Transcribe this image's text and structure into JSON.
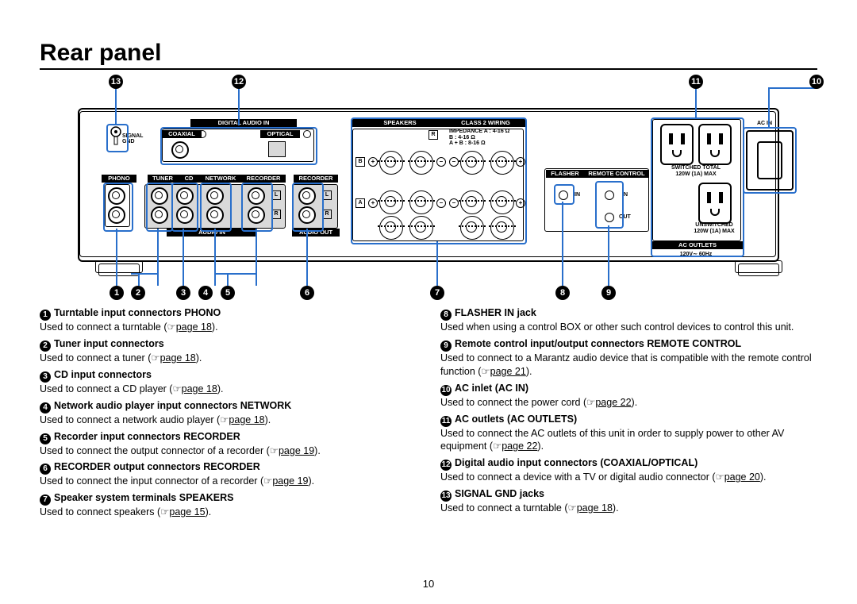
{
  "title": "Rear panel",
  "pagenum": "10",
  "callouts": {
    "c1": "1",
    "c2": "2",
    "c3": "3",
    "c4": "4",
    "c5": "5",
    "c6": "6",
    "c7": "7",
    "c8": "8",
    "c9": "9",
    "c10": "10",
    "c11": "11",
    "c12": "12",
    "c13": "13"
  },
  "panel_labels": {
    "digital_audio_in": "DIGITAL AUDIO IN",
    "coaxial": "COAXIAL",
    "optical": "OPTICAL",
    "signal_gnd": "SIGNAL\nGND",
    "phono": "PHONO",
    "tuner": "TUNER",
    "cd": "CD",
    "network": "NETWORK",
    "recorder": "RECORDER",
    "audio_in": "AUDIO IN",
    "audio_out": "AUDIO OUT",
    "speakers": "SPEAKERS",
    "class2": "CLASS 2 WIRING",
    "imp": "IMPEDANCE  A  :  4-16 Ω\nB  :  4-16 Ω\nA + B  : 8-16 Ω",
    "flasher": "FLASHER",
    "remote": "REMOTE CONTROL",
    "in": "IN",
    "out": "OUT",
    "ac_outlets": "AC OUTLETS",
    "switched": "SWITCHED TOTAL\n120W (1A) MAX",
    "unswitched": "UNSWITCHED\n120W (1A) MAX",
    "v60": "120V∼  60Hz",
    "ac_in": "AC IN",
    "L": "L",
    "R": "R",
    "A": "A",
    "B": "B",
    "plus": "+",
    "minus": "–"
  },
  "left": [
    {
      "n": "1",
      "t": "Turntable input connectors PHONO",
      "d": "Used to connect a turntable (☞",
      "p": "page 18",
      "e": ")."
    },
    {
      "n": "2",
      "t": "Tuner input connectors",
      "d": "Used to connect a tuner (☞",
      "p": "page 18",
      "e": ")."
    },
    {
      "n": "3",
      "t": "CD input connectors",
      "d": "Used to connect a CD player (☞",
      "p": "page 18",
      "e": ")."
    },
    {
      "n": "4",
      "t": "Network audio player input connectors NETWORK",
      "d": "Used to connect a network audio player (☞",
      "p": "page 18",
      "e": ")."
    },
    {
      "n": "5",
      "t": "Recorder input connectors RECORDER",
      "d": "Used to connect the output connector of a recorder (☞",
      "p": "page 19",
      "e": ")."
    },
    {
      "n": "6",
      "t": "RECORDER output connectors RECORDER",
      "d": "Used to connect the input connector of a recorder (☞",
      "p": "page 19",
      "e": ")."
    },
    {
      "n": "7",
      "t": "Speaker system terminals SPEAKERS",
      "d": "Used to connect speakers (☞",
      "p": "page 15",
      "e": ")."
    }
  ],
  "right": [
    {
      "n": "8",
      "t": "FLASHER IN jack",
      "d": "Used when using a control BOX or other such control devices to control this unit."
    },
    {
      "n": "9",
      "t": "Remote control input/output connectors REMOTE CONTROL",
      "d": "Used to connect to a Marantz audio device that is compatible with the remote control function (☞",
      "p": "page 21",
      "e": ")."
    },
    {
      "n": "10",
      "t": "AC inlet (AC IN)",
      "d": "Used to connect the power cord (☞",
      "p": "page 22",
      "e": ")."
    },
    {
      "n": "11",
      "t": "AC outlets (AC OUTLETS)",
      "d": "Used to connect the AC outlets of this unit in order to supply power to other AV equipment (☞",
      "p": "page 22",
      "e": ")."
    },
    {
      "n": "12",
      "t": "Digital audio input connectors (COAXIAL/OPTICAL)",
      "d2": "Used to connect a device with a TV or digital audio connector (☞",
      "p": "page 20",
      "e": ")."
    },
    {
      "n": "13",
      "t": "SIGNAL GND jacks",
      "d": "Used to connect a turntable (☞",
      "p": "page 18",
      "e": ")."
    }
  ]
}
